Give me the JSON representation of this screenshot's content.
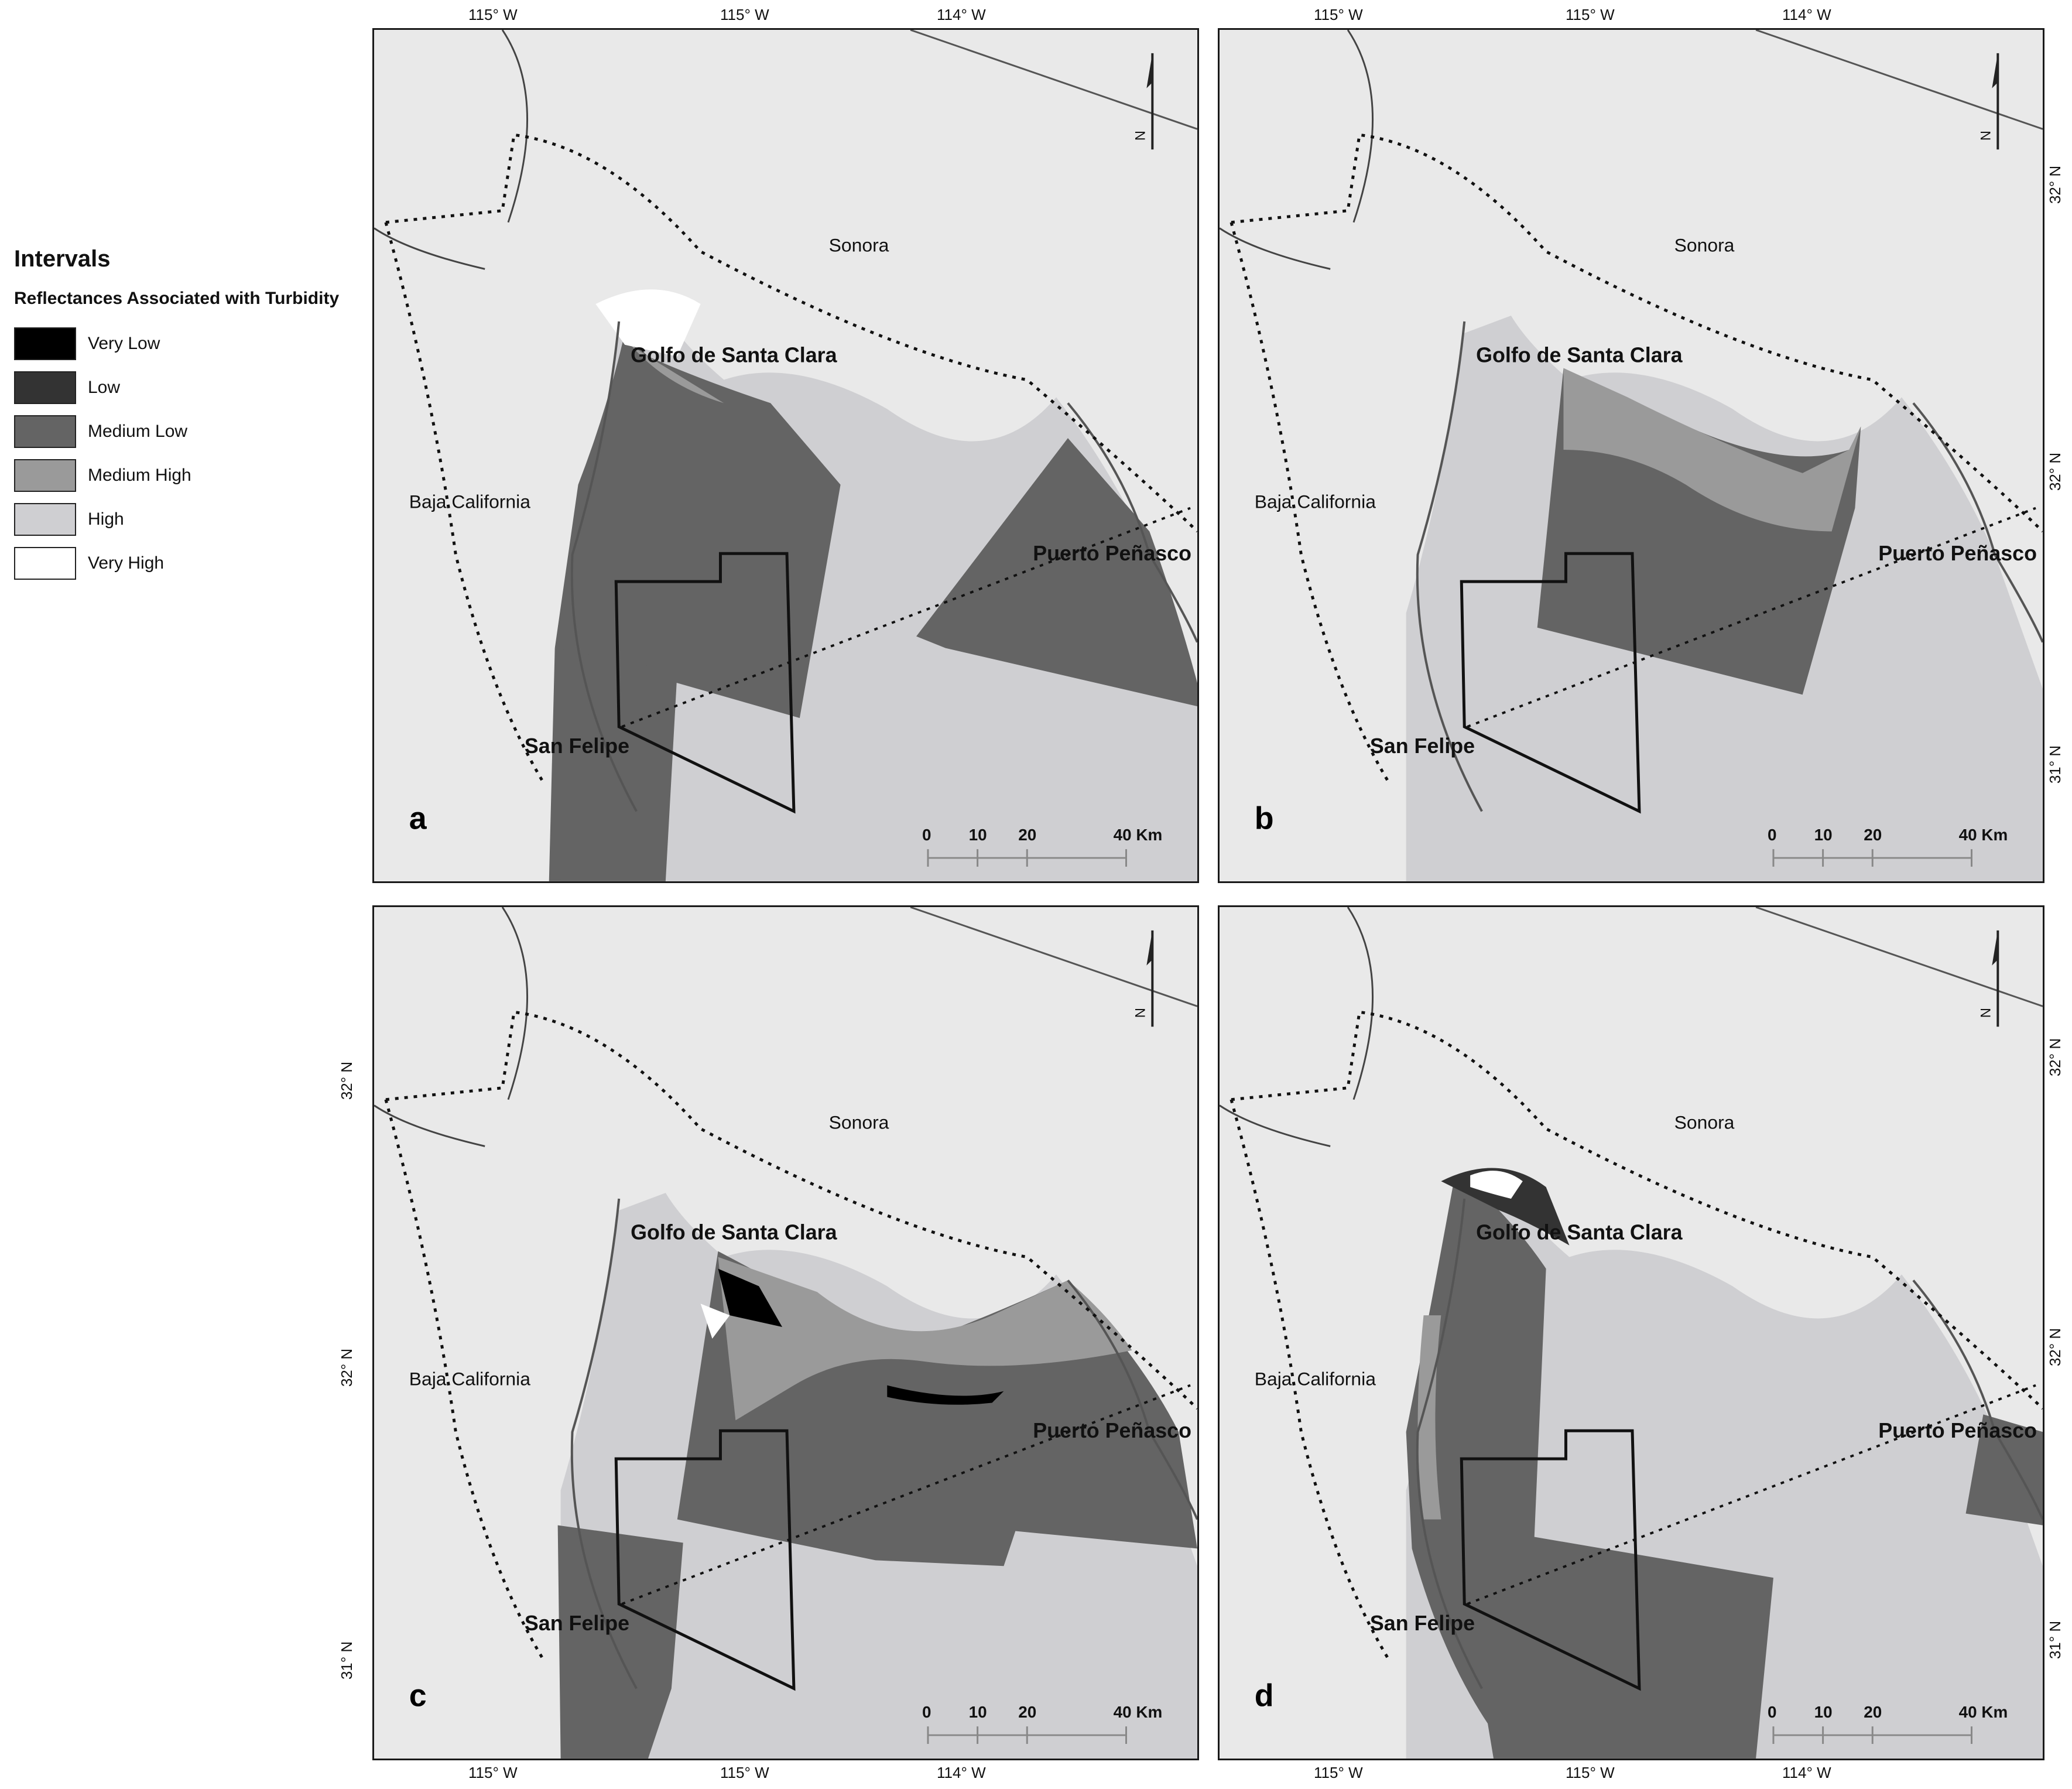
{
  "legend": {
    "title": "Intervals",
    "subtitle": "Reflectances Associated with Turbidity",
    "items": [
      {
        "label": "Very Low",
        "color": "#000000"
      },
      {
        "label": "Low",
        "color": "#333333"
      },
      {
        "label": "Medium Low",
        "color": "#646464"
      },
      {
        "label": "Medium High",
        "color": "#9a9a9a"
      },
      {
        "label": "High",
        "color": "#cfcfd2"
      },
      {
        "label": "Very High",
        "color": "#ffffff"
      }
    ]
  },
  "map": {
    "regions": {
      "sonora": "Sonora",
      "baja": "Baja California"
    },
    "places": {
      "golfo": "Golfo de Santa Clara",
      "penasco": "Puerto Peñasco",
      "felipe": "San Felipe"
    },
    "scale": {
      "t0": "0",
      "t10": "10",
      "t20": "20",
      "t40": "40 Km"
    },
    "north": "N",
    "graticule": {
      "lon_115a": "115° W",
      "lon_115b": "115° W",
      "lon_114": "114° W",
      "lat_32": "32° N",
      "lat_31": "31° N"
    },
    "panels": [
      {
        "letter": "a"
      },
      {
        "letter": "b"
      },
      {
        "letter": "c"
      },
      {
        "letter": "d"
      }
    ]
  }
}
